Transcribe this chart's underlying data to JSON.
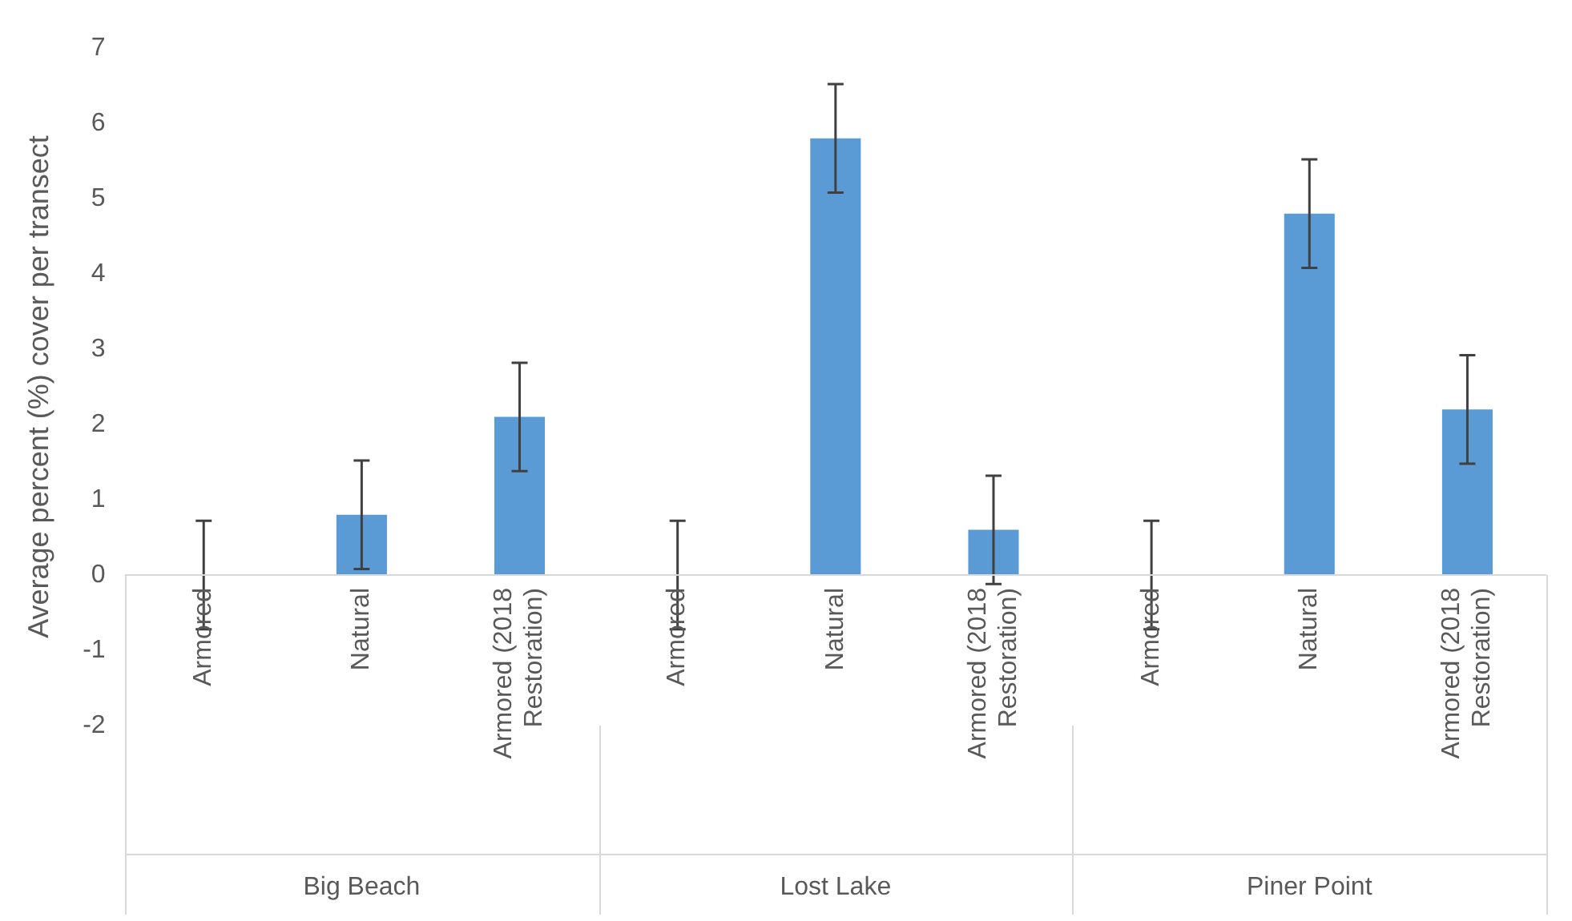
{
  "chart_data": {
    "type": "bar",
    "ylabel": "Average percent (%) cover per transect",
    "categories": [
      "Armored",
      "Natural",
      "Armored (2018 Restoration)",
      "Armored",
      "Natural",
      "Armored (2018 Restoration)",
      "Armored",
      "Natural",
      "Armored (2018 Restoration)"
    ],
    "values": [
      0,
      0.8,
      2.1,
      0,
      5.8,
      0.6,
      0,
      4.8,
      2.2
    ],
    "errors": [
      0.72,
      0.72,
      0.72,
      0.72,
      0.72,
      0.72,
      0.72,
      0.72,
      0.72
    ],
    "color": "#5b9bd5",
    "ylim": [
      -2,
      7
    ],
    "yticks": [
      -2,
      -1,
      0,
      1,
      2,
      3,
      4,
      5,
      6,
      7
    ],
    "grid": false,
    "legend": false,
    "annotations": [
      "Big Beach",
      "Lost Lake",
      "Piner Point"
    ]
  }
}
